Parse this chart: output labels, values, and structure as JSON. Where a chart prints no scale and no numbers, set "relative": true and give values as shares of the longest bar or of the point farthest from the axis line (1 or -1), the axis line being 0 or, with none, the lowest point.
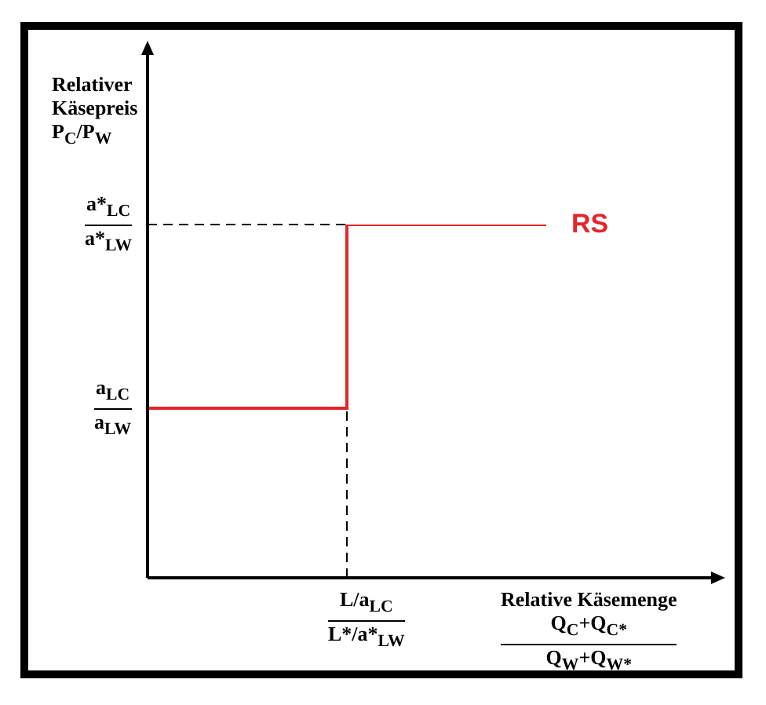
{
  "chart_data": {
    "type": "step",
    "relative": true,
    "categories": [
      null,
      null,
      null
    ],
    "series": [
      {
        "name": "RS",
        "color": "#e3262b",
        "values": [
          0.48,
          1,
          1
        ]
      }
    ],
    "ylabel": "Relativer\nKäsepreis\nP$_{C}$/P$_{W}$",
    "xlabel": "Relative Käsemenge\nQ$_{C}$+Q$_{C*}$\nQ$_{W}$+Q$_{W*}$",
    "ref_lines": [
      {
        "axis": "y",
        "value": 1,
        "label": "a*$_{LC}$\na*$_{LW}$",
        "line_style": "dashed",
        "color": "#000000"
      },
      {
        "axis": "y",
        "value": 0.48,
        "label": "a$_{LC}$\na$_{LW}$",
        "color": "#000000"
      },
      {
        "axis": "x",
        "label": "L/a$_{LC}$\nL*/a*$_{LW}$",
        "line_style": "dashed",
        "color": "#000000"
      }
    ],
    "legend": false
  }
}
